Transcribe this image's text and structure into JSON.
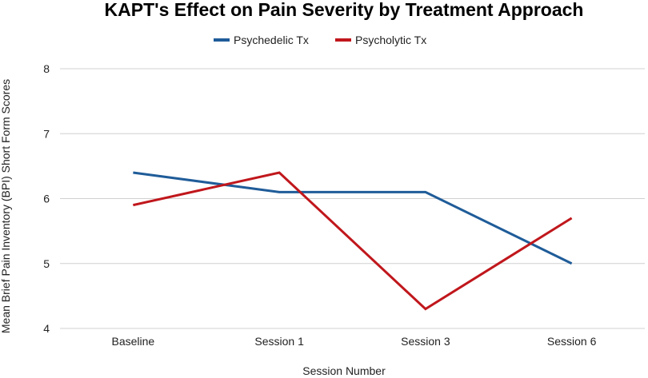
{
  "chart_data": {
    "type": "line",
    "title": "KAPT's Effect on Pain Severity by Treatment Approach",
    "xlabel": "Session Number",
    "ylabel": "Mean Brief Pain Inventory (BPI) Short Form Scores",
    "categories": [
      "Baseline",
      "Session 1",
      "Session 3",
      "Session 6"
    ],
    "ylim": [
      4,
      8
    ],
    "yticks": [
      4,
      5,
      6,
      7,
      8
    ],
    "grid": true,
    "legend_position": "top-center",
    "series": [
      {
        "name": "Psychedelic Tx",
        "color": "#1f5c99",
        "values": [
          6.4,
          6.1,
          6.1,
          5.0
        ]
      },
      {
        "name": "Psycholytic Tx",
        "color": "#c0171c",
        "values": [
          5.9,
          6.4,
          4.3,
          5.7
        ]
      }
    ]
  }
}
